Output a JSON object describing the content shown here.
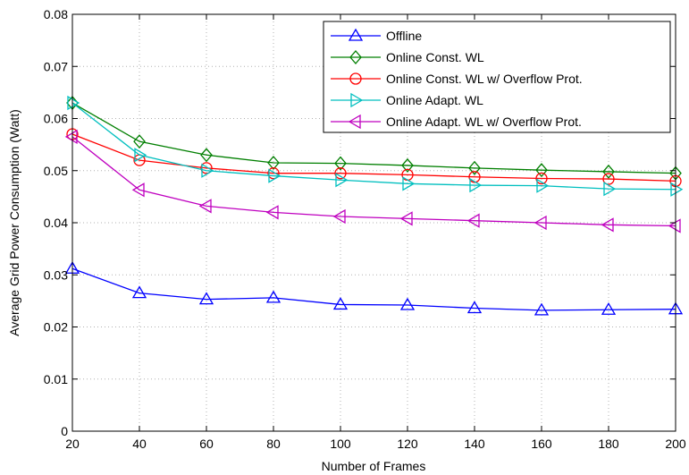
{
  "chart_data": {
    "type": "line",
    "title": "",
    "xlabel": "Number of Frames",
    "ylabel": "Average Grid Power Consumption (Watt)",
    "xlim": [
      20,
      200
    ],
    "ylim": [
      0,
      0.08
    ],
    "xticks": [
      20,
      40,
      60,
      80,
      100,
      120,
      140,
      160,
      180,
      200
    ],
    "yticks": [
      0,
      0.01,
      0.02,
      0.03,
      0.04,
      0.05,
      0.06,
      0.07,
      0.08
    ],
    "ytick_labels": [
      "0",
      "0.01",
      "0.02",
      "0.03",
      "0.04",
      "0.05",
      "0.06",
      "0.07",
      "0.08"
    ],
    "grid": true,
    "legend_position": "top-right",
    "x": [
      20,
      40,
      60,
      80,
      100,
      120,
      140,
      160,
      180,
      200
    ],
    "series": [
      {
        "name": "Offline",
        "color": "#0000ff",
        "marker": "triangle-up",
        "values": [
          0.0312,
          0.0265,
          0.0253,
          0.0256,
          0.0243,
          0.0242,
          0.0236,
          0.0232,
          0.0233,
          0.0234
        ]
      },
      {
        "name": "Online Const. WL",
        "color": "#007f00",
        "marker": "diamond",
        "values": [
          0.063,
          0.0556,
          0.053,
          0.0515,
          0.0514,
          0.051,
          0.0505,
          0.0501,
          0.0498,
          0.0495
        ]
      },
      {
        "name": "Online Const. WL w/ Overflow Prot.",
        "color": "#ff0000",
        "marker": "circle",
        "values": [
          0.057,
          0.052,
          0.0505,
          0.0495,
          0.0495,
          0.0492,
          0.0488,
          0.0485,
          0.0484,
          0.048
        ]
      },
      {
        "name": "Online Adapt. WL",
        "color": "#00bfbf",
        "marker": "triangle-right",
        "values": [
          0.063,
          0.053,
          0.05,
          0.049,
          0.0482,
          0.0475,
          0.0472,
          0.0471,
          0.0465,
          0.0464
        ]
      },
      {
        "name": "Online Adapt. WL w/ Overflow Prot.",
        "color": "#bf00bf",
        "marker": "triangle-left",
        "values": [
          0.0565,
          0.0463,
          0.0432,
          0.042,
          0.0412,
          0.0408,
          0.0404,
          0.04,
          0.0396,
          0.0394
        ]
      }
    ]
  }
}
